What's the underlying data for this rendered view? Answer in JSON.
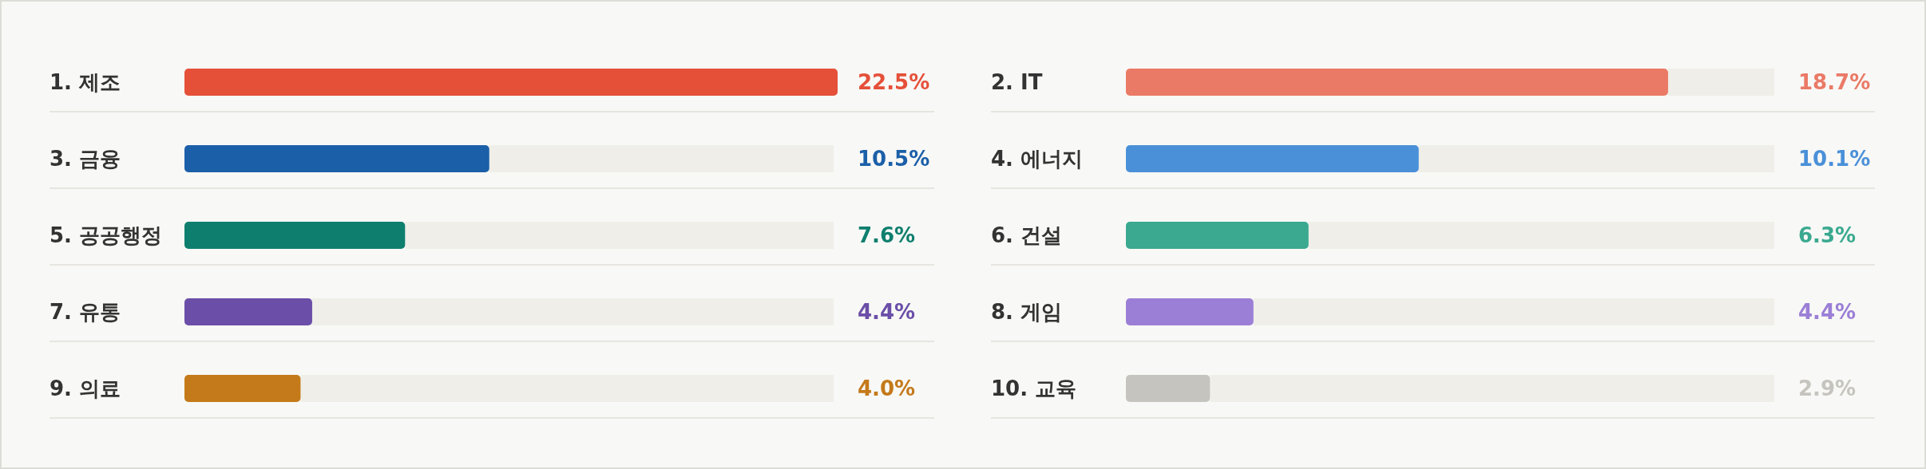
{
  "chart_data": [
    {
      "type": "bar",
      "orientation": "horizontal",
      "categories": [
        "1. 제조",
        "3. 금융",
        "5. 공공행정",
        "7. 유통",
        "9. 의료"
      ],
      "values": [
        22.5,
        10.5,
        7.6,
        4.4,
        4.0
      ],
      "value_labels": [
        "22.5%",
        "10.5%",
        "7.6%",
        "4.4%",
        "4.0%"
      ],
      "colors": [
        "#e55039",
        "#1b5fa8",
        "#0e7f6e",
        "#6b4ea8",
        "#c47a1a"
      ],
      "xlim": [
        0,
        22.5
      ],
      "grid": "y"
    },
    {
      "type": "bar",
      "orientation": "horizontal",
      "categories": [
        "2. IT",
        "4. 에너지",
        "6. 건설",
        "8. 게임",
        "10. 교육"
      ],
      "values": [
        18.7,
        10.1,
        6.3,
        4.4,
        2.9
      ],
      "value_labels": [
        "18.7%",
        "10.1%",
        "6.3%",
        "4.4%",
        "2.9%"
      ],
      "colors": [
        "#ea7a66",
        "#4a90d9",
        "#3aa98f",
        "#9b7fd6",
        "#c5c4be"
      ],
      "xlim": [
        0,
        22.5
      ],
      "grid": "y"
    }
  ]
}
